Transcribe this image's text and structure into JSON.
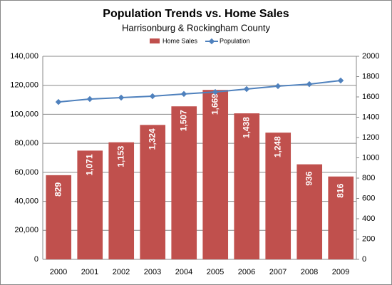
{
  "chart_data": {
    "type": "bar-line",
    "title": "Population Trends vs. Home Sales",
    "subtitle": "Harrisonburg & Rockingham County",
    "categories": [
      "2000",
      "2001",
      "2002",
      "2003",
      "2004",
      "2005",
      "2006",
      "2007",
      "2008",
      "2009"
    ],
    "series": [
      {
        "name": "Home Sales",
        "type": "bar",
        "axis": "y2",
        "color": "#c0504d",
        "values": [
          829,
          1071,
          1153,
          1324,
          1507,
          1669,
          1438,
          1248,
          936,
          816
        ],
        "value_labels": [
          "829",
          "1,071",
          "1,153",
          "1,324",
          "1,507",
          "1,669",
          "1,438",
          "1,248",
          "936",
          "816"
        ]
      },
      {
        "name": "Population",
        "type": "line",
        "color": "#4f81bd",
        "values": [
          108500,
          110500,
          111500,
          112500,
          114000,
          115400,
          117400,
          119400,
          120800,
          123300
        ]
      }
    ],
    "ylim": [
      0,
      140000
    ],
    "yticks": [
      0,
      {
        "value": 20000,
        "label": "20,000"
      },
      {
        "value": 40000,
        "label": "40,000"
      },
      {
        "value": 60000,
        "label": "60,000"
      },
      {
        "value": 80000,
        "label": "80,000"
      },
      {
        "value": 100000,
        "label": "100,000"
      },
      {
        "value": 120000,
        "label": "120,000"
      },
      {
        "value": 140000,
        "label": "140,000"
      }
    ],
    "y2lim": [
      0,
      2000
    ],
    "y2ticks": [
      0,
      200,
      400,
      600,
      800,
      1000,
      1200,
      1400,
      1600,
      1800,
      2000
    ],
    "grid": true
  }
}
